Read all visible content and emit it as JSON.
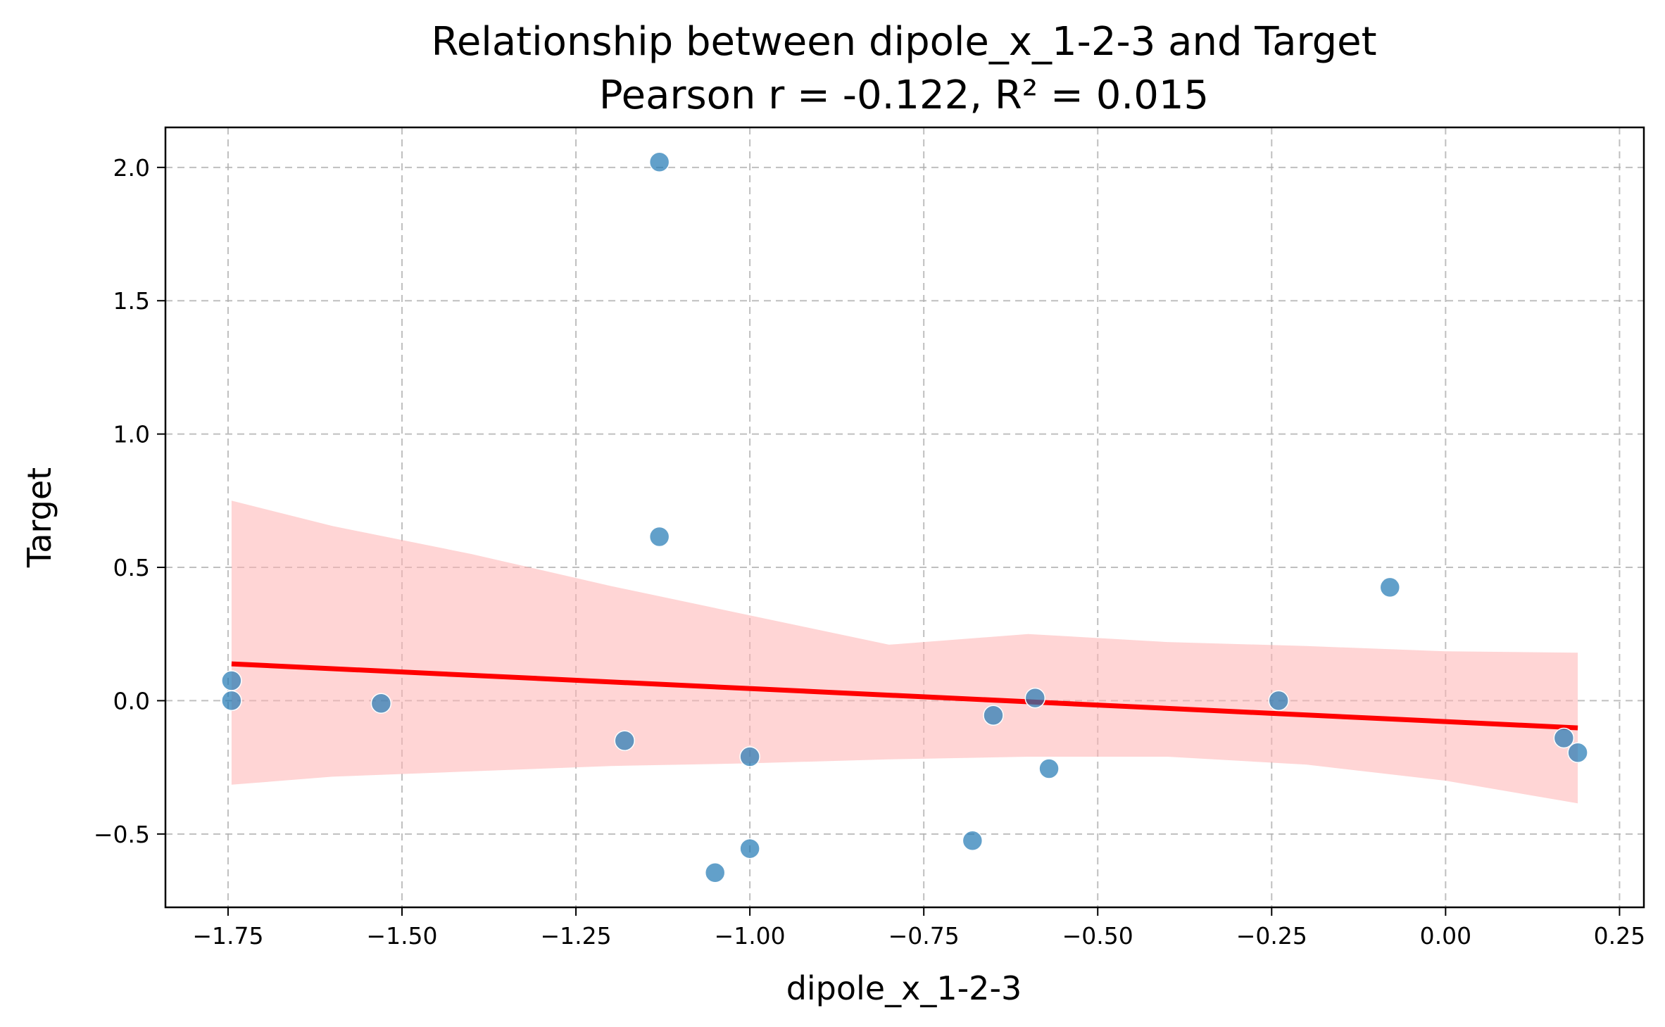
{
  "chart_data": {
    "type": "scatter",
    "title": "Relationship between dipole_x_1-2-3 and Target",
    "subtitle": "Pearson r = -0.122, R² = 0.015",
    "xlabel": "dipole_x_1-2-3",
    "ylabel": "Target",
    "xlim": [
      -1.84,
      0.285
    ],
    "ylim": [
      -0.775,
      2.15
    ],
    "xticks": [
      -1.75,
      -1.5,
      -1.25,
      -1.0,
      -0.75,
      -0.5,
      -0.25,
      0.0,
      0.25
    ],
    "xtick_labels": [
      "−1.75",
      "−1.50",
      "−1.25",
      "−1.00",
      "−0.75",
      "−0.50",
      "−0.25",
      "0.00",
      "0.25"
    ],
    "yticks": [
      -0.5,
      0.0,
      0.5,
      1.0,
      1.5,
      2.0
    ],
    "ytick_labels": [
      "−0.5",
      "0.0",
      "0.5",
      "1.0",
      "1.5",
      "2.0"
    ],
    "grid": true,
    "colors": {
      "points": "#1f77b4",
      "regression_line": "#ff0000",
      "confidence_band": "#ffb3b3"
    },
    "points": [
      {
        "x": -1.745,
        "y": 0.075
      },
      {
        "x": -1.745,
        "y": 0.0
      },
      {
        "x": -1.53,
        "y": -0.01
      },
      {
        "x": -1.13,
        "y": 2.02
      },
      {
        "x": -1.13,
        "y": 0.615
      },
      {
        "x": -1.18,
        "y": -0.15
      },
      {
        "x": -1.0,
        "y": -0.21
      },
      {
        "x": -1.0,
        "y": -0.555
      },
      {
        "x": -1.05,
        "y": -0.645
      },
      {
        "x": -0.68,
        "y": -0.525
      },
      {
        "x": -0.65,
        "y": -0.055
      },
      {
        "x": -0.59,
        "y": 0.01
      },
      {
        "x": -0.57,
        "y": -0.255
      },
      {
        "x": -0.24,
        "y": 0.0
      },
      {
        "x": -0.08,
        "y": 0.425
      },
      {
        "x": 0.17,
        "y": -0.14
      },
      {
        "x": 0.19,
        "y": -0.195
      }
    ],
    "regression": {
      "x": [
        -1.745,
        0.19
      ],
      "y": [
        0.138,
        -0.102
      ]
    },
    "confidence_band": {
      "x": [
        -1.745,
        -1.6,
        -1.4,
        -1.2,
        -1.0,
        -0.8,
        -0.6,
        -0.4,
        -0.2,
        0.0,
        0.19
      ],
      "upper": [
        0.75,
        0.655,
        0.55,
        0.43,
        0.32,
        0.21,
        0.25,
        0.22,
        0.205,
        0.185,
        0.18
      ],
      "lower": [
        -0.315,
        -0.285,
        -0.265,
        -0.245,
        -0.235,
        -0.22,
        -0.21,
        -0.21,
        -0.24,
        -0.3,
        -0.385
      ]
    }
  }
}
